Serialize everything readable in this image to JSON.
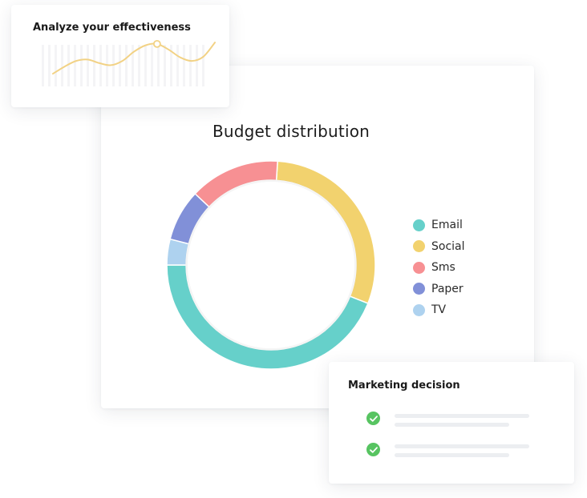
{
  "effectiveness_card": {
    "title": "Analyze your effectiveness"
  },
  "budget_card": {
    "title": "Budget distribution"
  },
  "marketing_card": {
    "title": "Marketing decision",
    "items": [
      {
        "icon": "check-circle-icon",
        "checked": true
      },
      {
        "icon": "check-circle-icon",
        "checked": true
      }
    ]
  },
  "colors": {
    "email": "#66d0ca",
    "social": "#f2d26e",
    "sms": "#f79093",
    "paper": "#8190d8",
    "tv": "#aed2ef",
    "check": "#57c461",
    "sparkline": "#f2d285"
  },
  "chart_data": [
    {
      "type": "pie",
      "title": "Budget distribution",
      "categories": [
        "Email",
        "Social",
        "Sms",
        "Paper",
        "TV"
      ],
      "values": [
        44,
        30,
        14,
        8,
        4
      ],
      "legend": "right",
      "donut": true
    },
    {
      "type": "line",
      "title": "Analyze your effectiveness",
      "x": [
        0,
        1,
        2,
        3,
        4,
        5,
        6,
        7,
        8,
        9,
        10,
        11,
        12,
        13,
        14
      ],
      "series": [
        {
          "values": [
            18,
            28,
            36,
            38,
            33,
            30,
            36,
            49,
            58,
            60,
            52,
            41,
            36,
            42,
            62
          ],
          "marker_index": 9
        }
      ]
    }
  ]
}
